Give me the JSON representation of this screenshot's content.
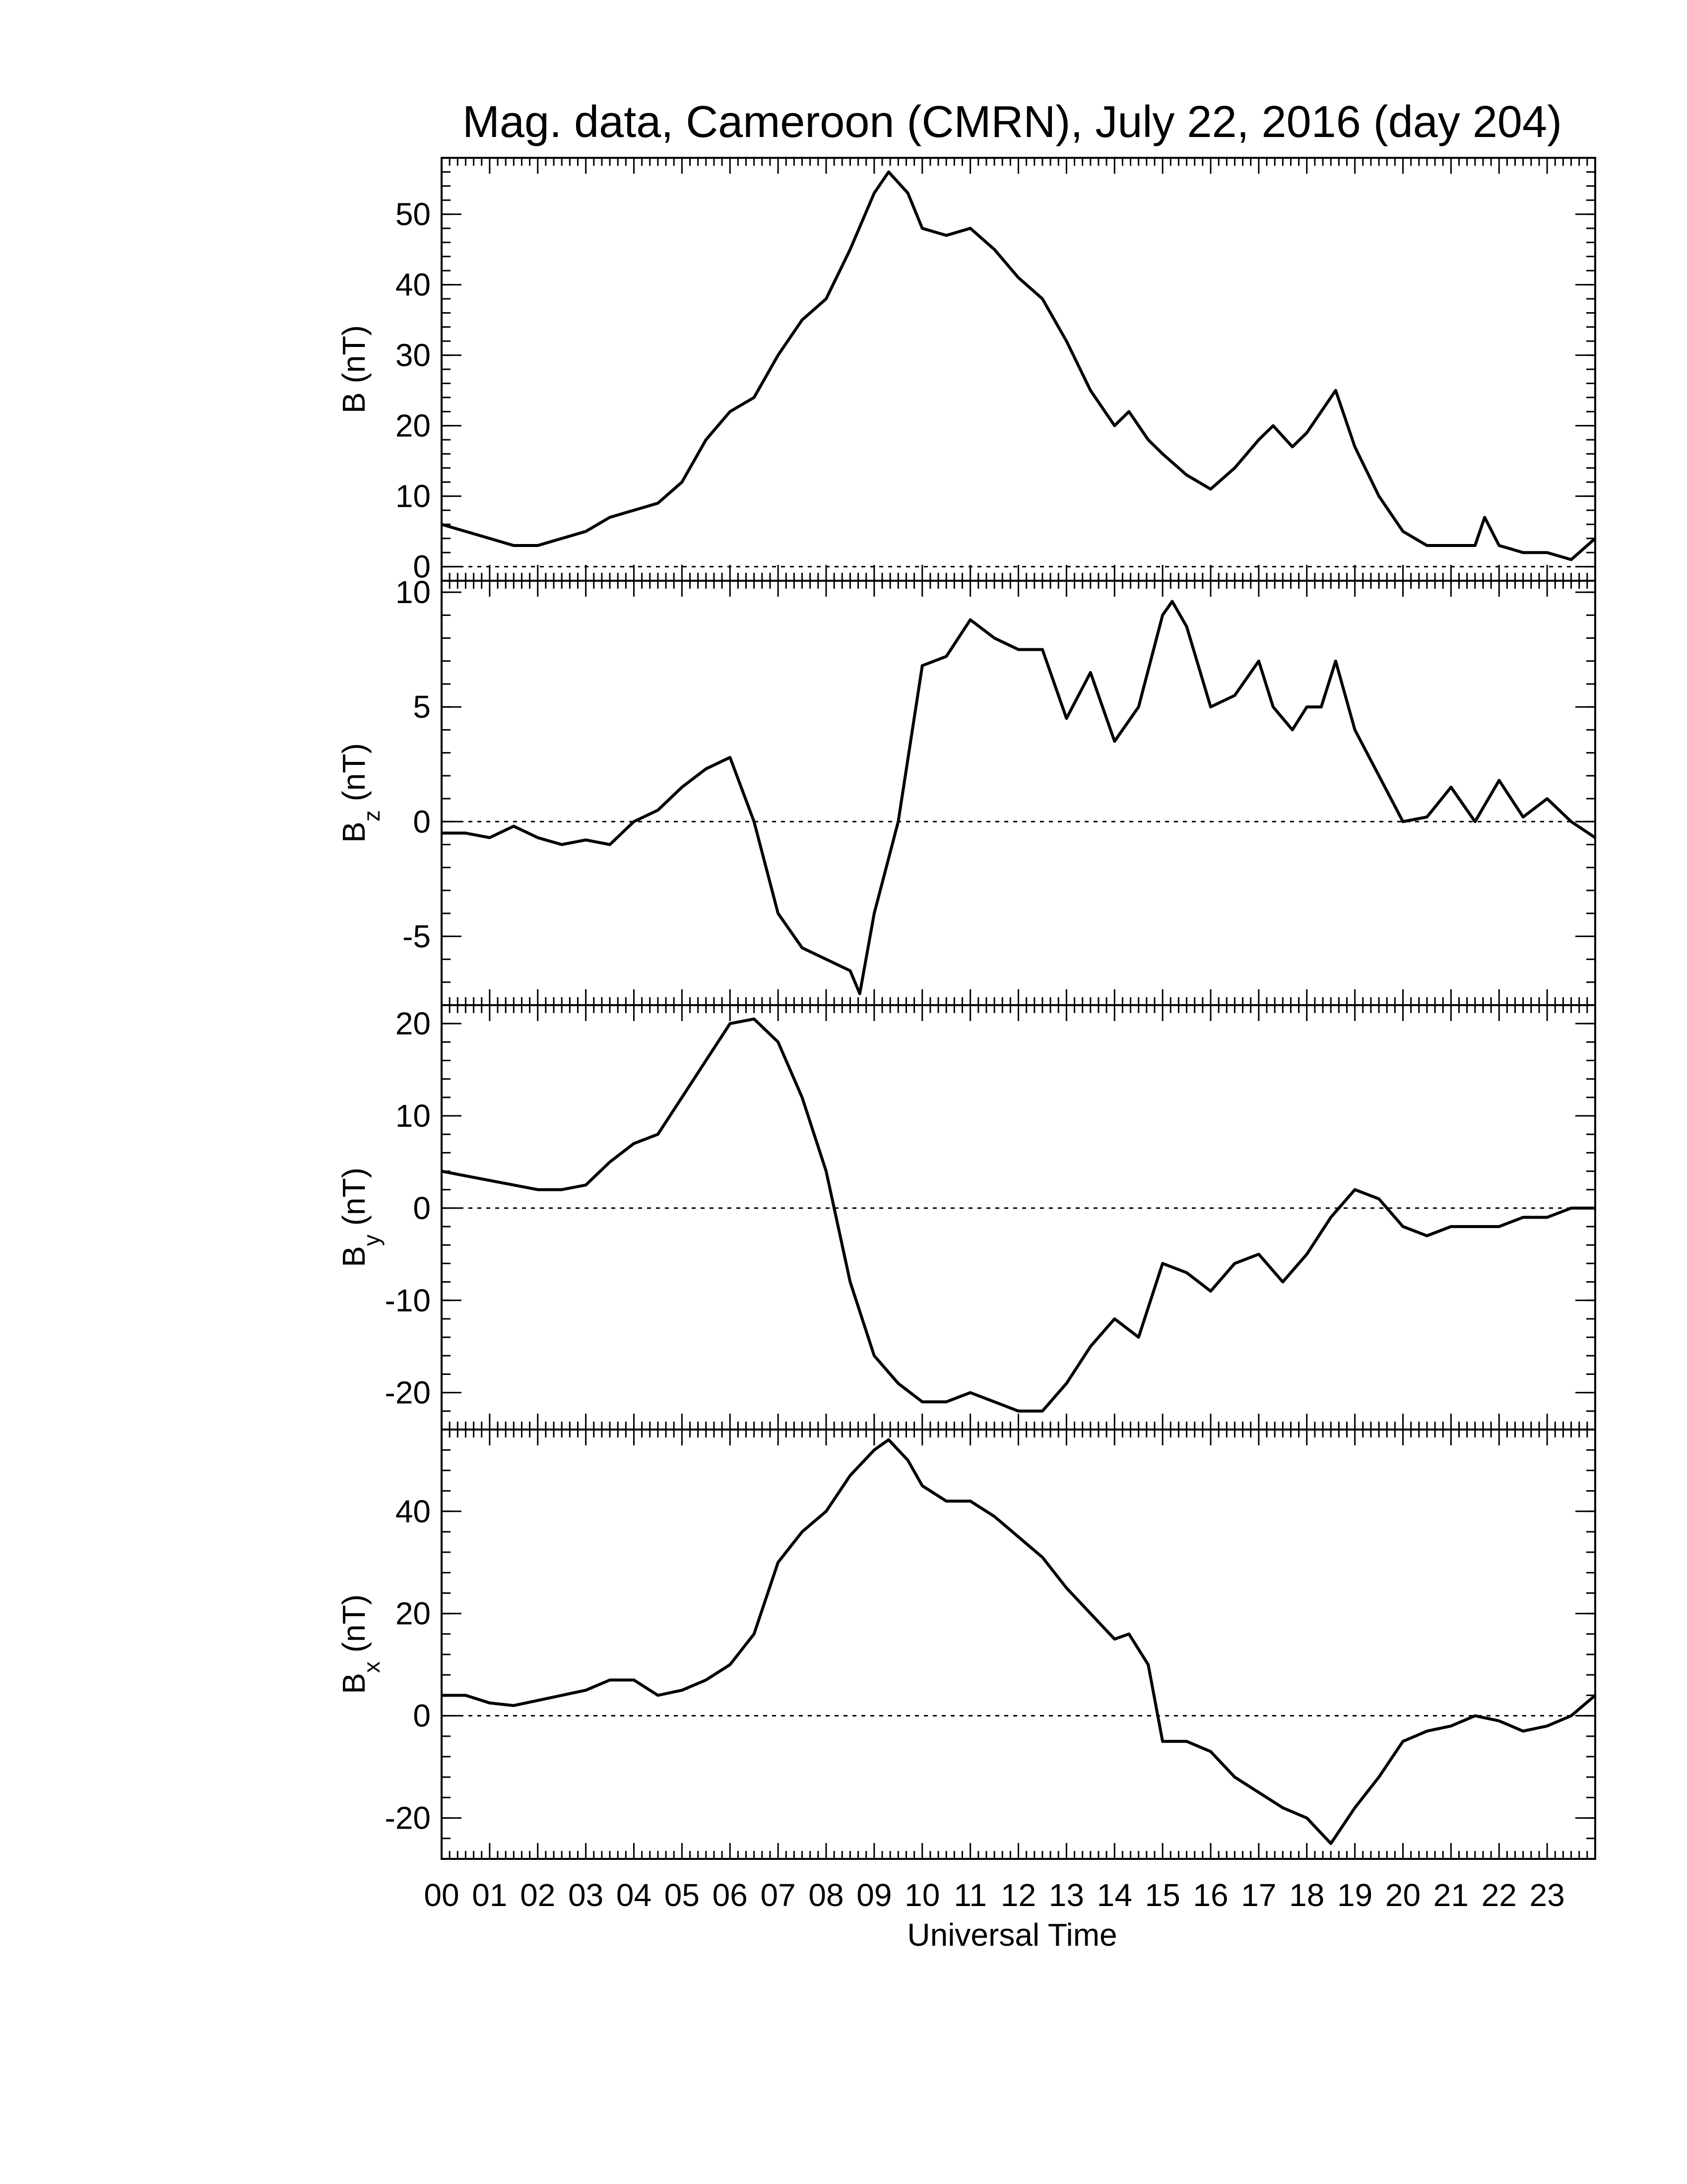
{
  "chart_data": {
    "type": "line",
    "title": "Mag. data, Cameroon (CMRN), July 22, 2016 (day 204)",
    "xlabel": "Universal Time",
    "x_tick_labels": [
      "00",
      "01",
      "02",
      "03",
      "04",
      "05",
      "06",
      "07",
      "08",
      "09",
      "10",
      "11",
      "12",
      "13",
      "14",
      "15",
      "16",
      "17",
      "18",
      "19",
      "20",
      "21",
      "22",
      "23"
    ],
    "xlim": [
      0,
      24
    ],
    "panels": [
      {
        "ylabel_main": "B",
        "ylabel_sub": "",
        "ylabel_unit": " (nT)",
        "ylim": [
          -2,
          58
        ],
        "yticks": [
          0,
          10,
          20,
          30,
          40,
          50
        ],
        "zero_line": true,
        "series": {
          "x": [
            0,
            0.5,
            1,
            1.5,
            2,
            2.5,
            3,
            3.5,
            4,
            4.5,
            5,
            5.5,
            6,
            6.5,
            7,
            7.5,
            8,
            8.5,
            9,
            9.3,
            9.7,
            10,
            10.5,
            11,
            11.5,
            12,
            12.5,
            13,
            13.5,
            14,
            14.3,
            14.7,
            15,
            15.5,
            16,
            16.5,
            17,
            17.3,
            17.7,
            18,
            18.3,
            18.6,
            19,
            19.5,
            20,
            20.5,
            21,
            21.5,
            21.7,
            22,
            22.5,
            23,
            23.5,
            24
          ],
          "y": [
            6,
            5,
            4,
            3,
            3,
            4,
            5,
            7,
            8,
            9,
            12,
            18,
            22,
            24,
            30,
            35,
            38,
            45,
            53,
            56,
            53,
            48,
            47,
            48,
            45,
            41,
            38,
            32,
            25,
            20,
            22,
            18,
            16,
            13,
            11,
            14,
            18,
            20,
            17,
            19,
            22,
            25,
            17,
            10,
            5,
            3,
            3,
            3,
            7,
            3,
            2,
            2,
            1,
            4
          ]
        }
      },
      {
        "ylabel_main": "B",
        "ylabel_sub": "z",
        "ylabel_unit": " (nT)",
        "ylim": [
          -8,
          10.5
        ],
        "yticks": [
          -5,
          0,
          5,
          10
        ],
        "zero_line": true,
        "series": {
          "x": [
            0,
            0.5,
            1,
            1.5,
            2,
            2.5,
            3,
            3.5,
            4,
            4.5,
            5,
            5.5,
            6,
            6.5,
            7,
            7.5,
            8,
            8.5,
            8.7,
            9,
            9.5,
            10,
            10.5,
            11,
            11.5,
            12,
            12.5,
            13,
            13.5,
            14,
            14.5,
            15,
            15.2,
            15.5,
            16,
            16.5,
            17,
            17.3,
            17.7,
            18,
            18.3,
            18.6,
            19,
            19.5,
            20,
            20.5,
            21,
            21.5,
            22,
            22.5,
            23,
            23.5,
            24
          ],
          "y": [
            -0.5,
            -0.5,
            -0.7,
            -0.2,
            -0.7,
            -1,
            -0.8,
            -1,
            0,
            0.5,
            1.5,
            2.3,
            2.8,
            0,
            -4,
            -5.5,
            -6,
            -6.5,
            -7.5,
            -4,
            0,
            6.8,
            7.2,
            8.8,
            8,
            7.5,
            7.5,
            4.5,
            6.5,
            3.5,
            5,
            9,
            9.6,
            8.5,
            5,
            5.5,
            7,
            5,
            4,
            5,
            5,
            7,
            4,
            2,
            0,
            0.2,
            1.5,
            0,
            1.8,
            0.2,
            1,
            0,
            -0.7
          ]
        }
      },
      {
        "ylabel_main": "B",
        "ylabel_sub": "y",
        "ylabel_unit": " (nT)",
        "ylim": [
          -24,
          22
        ],
        "yticks": [
          -20,
          -10,
          0,
          10,
          20
        ],
        "zero_line": true,
        "series": {
          "x": [
            0,
            0.5,
            1,
            1.5,
            2,
            2.5,
            3,
            3.5,
            4,
            4.5,
            5,
            5.5,
            6,
            6.5,
            7,
            7.5,
            8,
            8.5,
            9,
            9.5,
            10,
            10.5,
            11,
            11.5,
            12,
            12.5,
            13,
            13.5,
            14,
            14.5,
            15,
            15.5,
            16,
            16.5,
            17,
            17.5,
            18,
            18.5,
            19,
            19.5,
            20,
            20.5,
            21,
            21.5,
            22,
            22.5,
            23,
            23.5,
            24
          ],
          "y": [
            4,
            3.5,
            3,
            2.5,
            2,
            2,
            2.5,
            5,
            7,
            8,
            12,
            16,
            20,
            20.5,
            18,
            12,
            4,
            -8,
            -16,
            -19,
            -21,
            -21,
            -20,
            -21,
            -22,
            -22,
            -19,
            -15,
            -12,
            -14,
            -6,
            -7,
            -9,
            -6,
            -5,
            -8,
            -5,
            -1,
            2,
            1,
            -2,
            -3,
            -2,
            -2,
            -2,
            -1,
            -1,
            0,
            0
          ]
        }
      },
      {
        "ylabel_main": "B",
        "ylabel_sub": "x",
        "ylabel_unit": " (nT)",
        "ylim": [
          -28,
          56
        ],
        "yticks": [
          -20,
          0,
          20,
          40
        ],
        "zero_line": true,
        "series": {
          "x": [
            0,
            0.5,
            1,
            1.5,
            2,
            2.5,
            3,
            3.5,
            4,
            4.5,
            5,
            5.5,
            6,
            6.5,
            7,
            7.5,
            8,
            8.5,
            9,
            9.3,
            9.7,
            10,
            10.5,
            11,
            11.5,
            12,
            12.5,
            13,
            13.5,
            14,
            14.3,
            14.7,
            15,
            15.5,
            16,
            16.5,
            17,
            17.5,
            18,
            18.5,
            19,
            19.5,
            20,
            20.5,
            21,
            21.5,
            22,
            22.5,
            23,
            23.5,
            24
          ],
          "y": [
            4,
            4,
            2.5,
            2,
            3,
            4,
            5,
            7,
            7,
            4,
            5,
            7,
            10,
            16,
            30,
            36,
            40,
            47,
            52,
            54,
            50,
            45,
            42,
            42,
            39,
            35,
            31,
            25,
            20,
            15,
            16,
            10,
            -5,
            -5,
            -7,
            -12,
            -15,
            -18,
            -20,
            -25,
            -18,
            -12,
            -5,
            -3,
            -2,
            0,
            -1,
            -3,
            -2,
            0,
            4
          ]
        }
      }
    ],
    "grid": false
  }
}
